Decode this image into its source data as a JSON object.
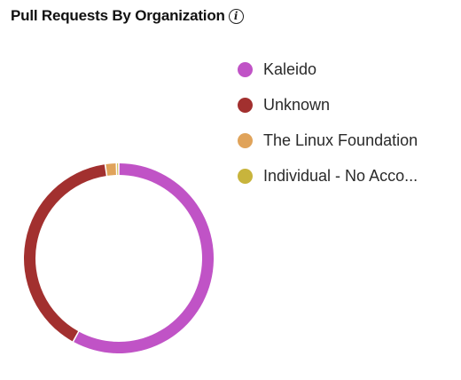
{
  "header": {
    "title": "Pull Requests By Organization",
    "info_icon": "info-icon"
  },
  "chart_data": {
    "type": "pie",
    "variant": "donut",
    "title": "Pull Requests By Organization",
    "legend_position": "right",
    "series": [
      {
        "name": "Kaleido",
        "value": 58.0,
        "color": "#C053C6",
        "legend_label": "Kaleido"
      },
      {
        "name": "Unknown",
        "value": 39.7,
        "color": "#A2302F",
        "legend_label": "Unknown"
      },
      {
        "name": "The Linux Foundation",
        "value": 1.9,
        "color": "#E0A35A",
        "legend_label": "The Linux Foundation"
      },
      {
        "name": "Individual - No Account",
        "value": 0.4,
        "color": "#C8B43C",
        "legend_label": "Individual - No Acco..."
      }
    ]
  }
}
